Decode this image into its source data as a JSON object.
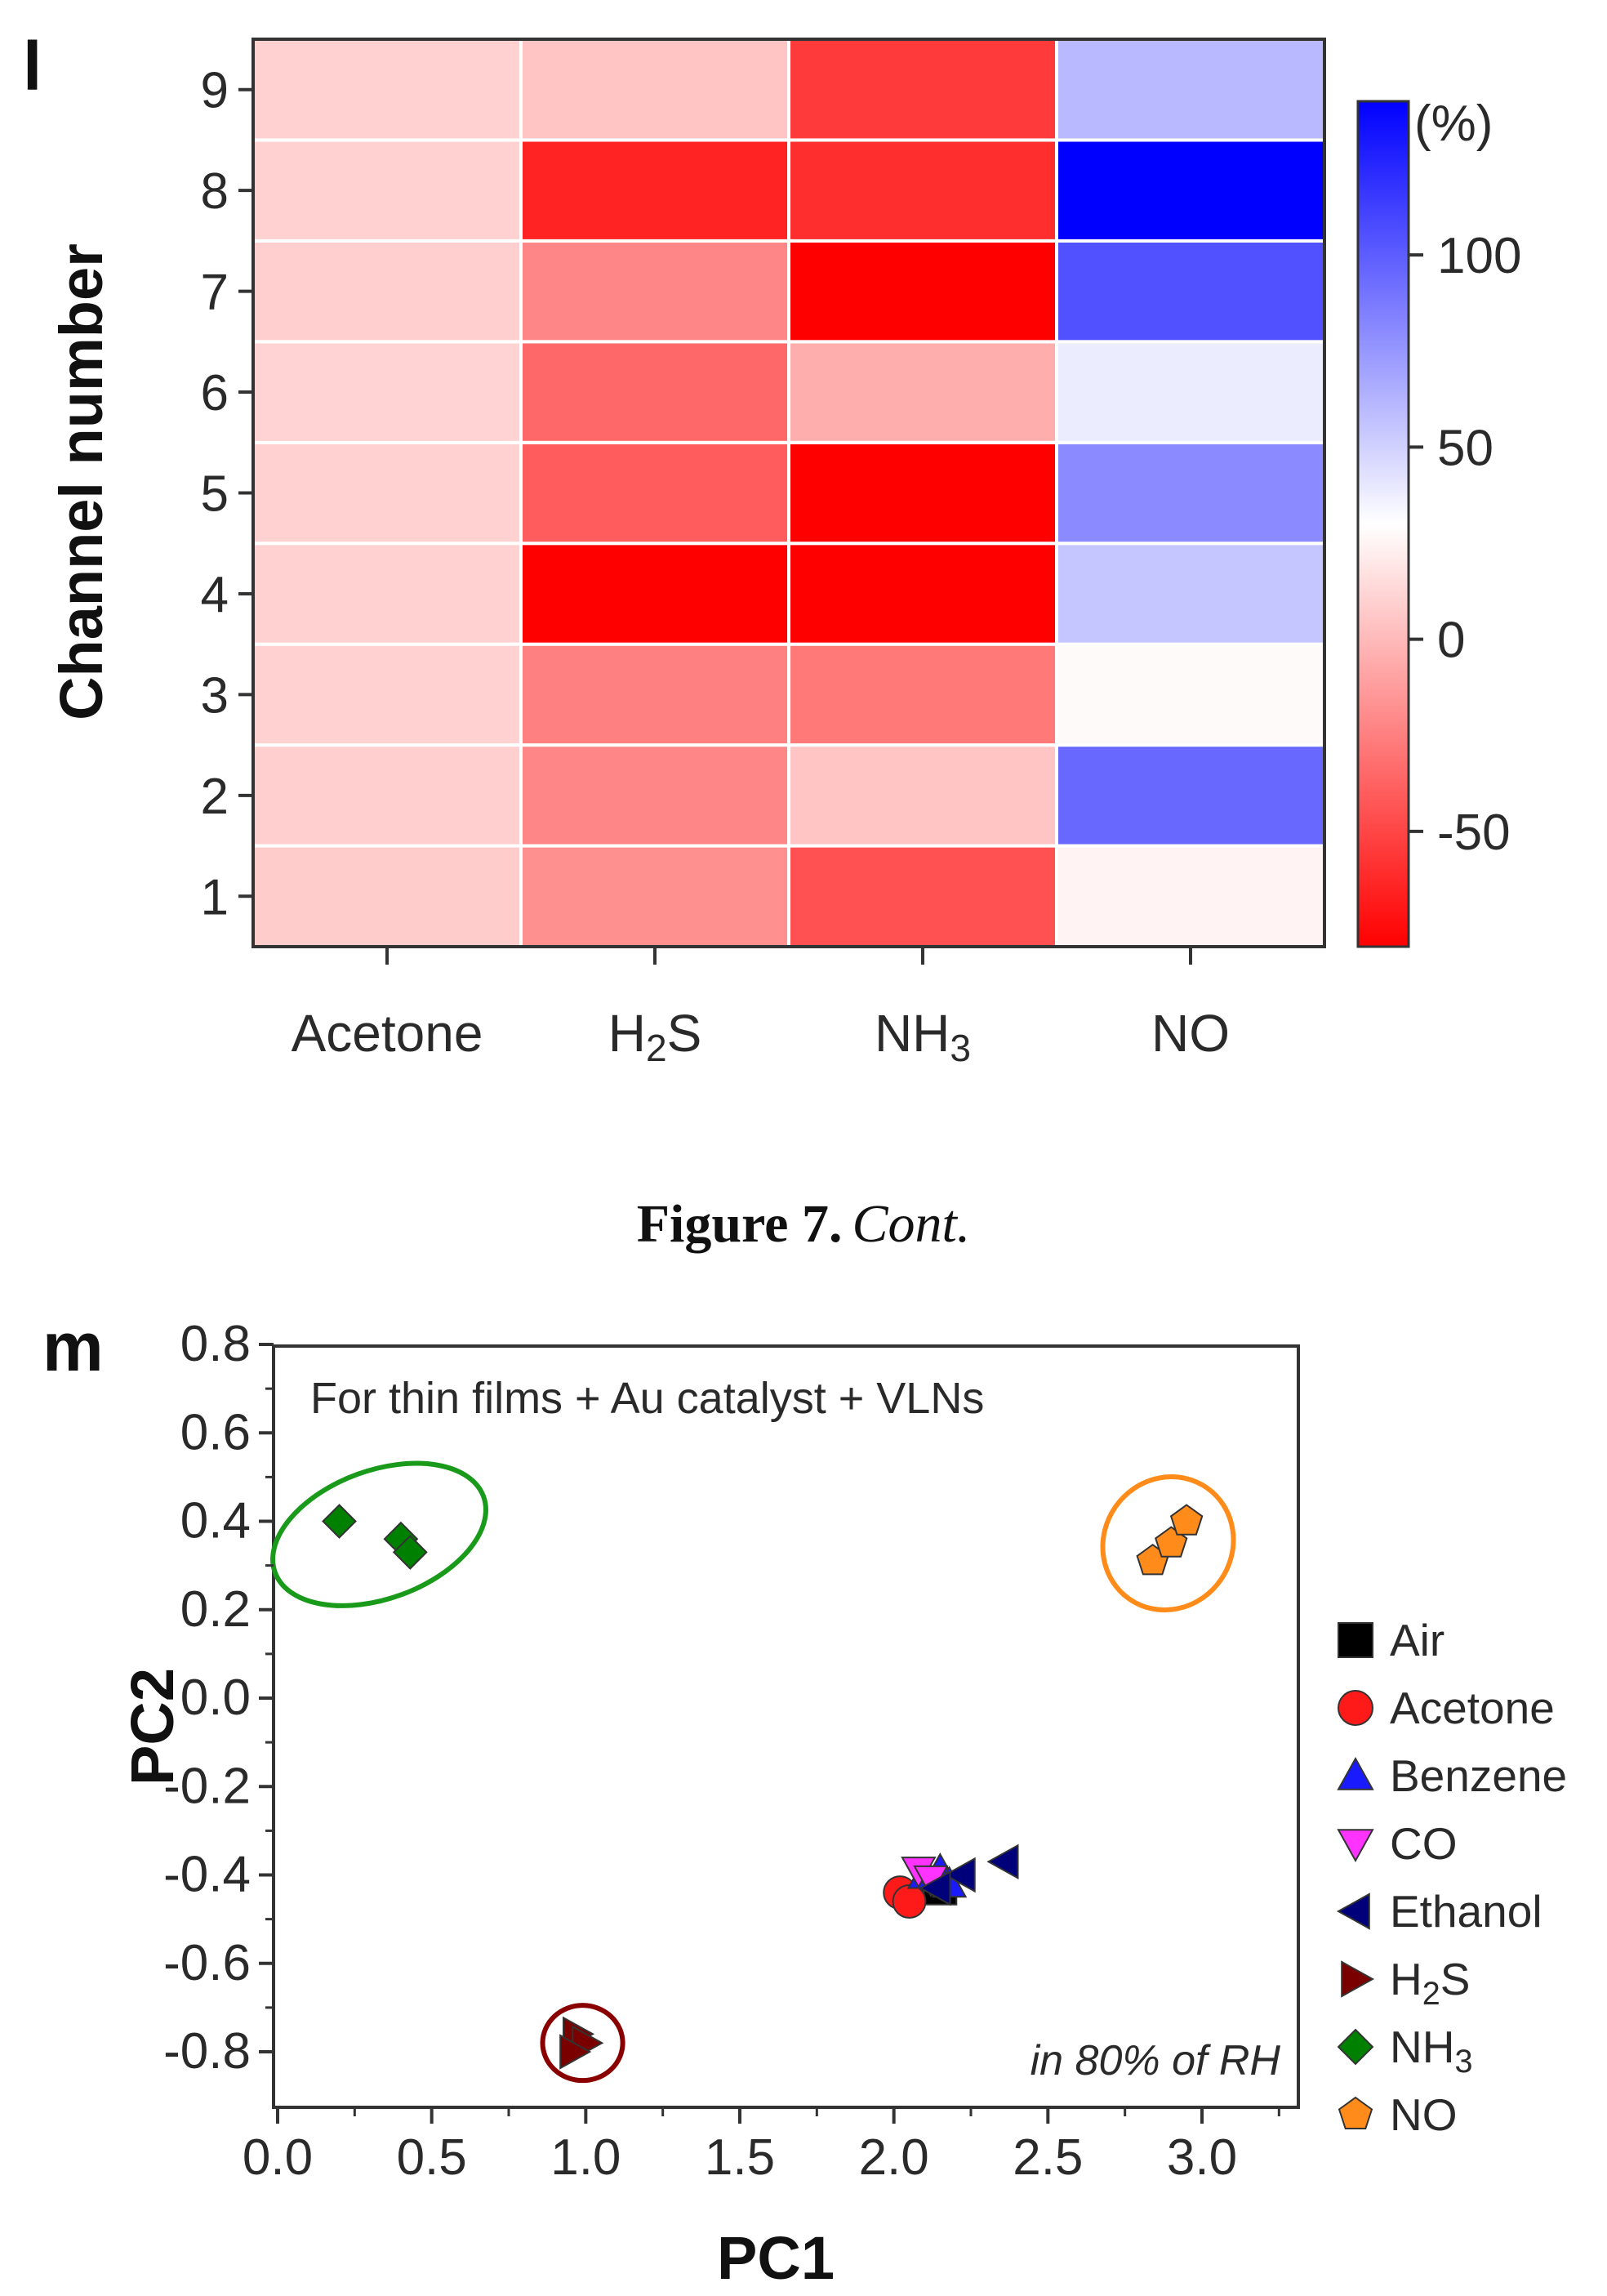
{
  "caption": {
    "label": "Figure 7.",
    "cont": "Cont."
  },
  "chart_data": [
    {
      "panel": "l",
      "type": "heatmap",
      "ylabel": "Channel number",
      "x_categories": [
        "Acetone",
        "H2S",
        "NH3",
        "NO"
      ],
      "x_labels": [
        {
          "base": "Acetone",
          "sub": "",
          "tail": ""
        },
        {
          "base": "H",
          "sub": "2",
          "tail": "S"
        },
        {
          "base": "NH",
          "sub": "3",
          "tail": ""
        },
        {
          "base": "NO",
          "sub": "",
          "tail": ""
        }
      ],
      "y_categories": [
        1,
        2,
        3,
        4,
        5,
        6,
        7,
        8,
        9
      ],
      "values": {
        "Acetone": [
          8,
          9,
          10,
          10,
          10,
          11,
          9,
          10,
          10
        ],
        "H2S": [
          -18,
          -22,
          -25,
          -80,
          -40,
          -35,
          -22,
          -65,
          5
        ],
        "NH3": [
          -45,
          5,
          -28,
          -90,
          -95,
          -5,
          -95,
          -60,
          -55
        ],
        "NO": [
          25,
          95,
          28,
          55,
          80,
          38,
          105,
          140,
          60
        ]
      },
      "colorbar": {
        "unit": "(%)",
        "range": [
          -80,
          140
        ],
        "ticks": [
          -50,
          0,
          50,
          100
        ],
        "colors": {
          "low": "#ff0000",
          "mid": "#ffffff",
          "high": "#0000ff"
        },
        "mid_value": 30
      }
    },
    {
      "panel": "m",
      "type": "scatter",
      "annotation": "For thin films + Au catalyst + VLNs",
      "condition": "in 80% of RH",
      "xlabel": "PC1",
      "ylabel": "PC2",
      "xlim": [
        0.0,
        3.3
      ],
      "ylim": [
        -0.9,
        0.8
      ],
      "xticks": [
        0.0,
        0.5,
        1.0,
        1.5,
        2.0,
        2.5,
        3.0
      ],
      "xtick_labels": [
        "0.0",
        "0.5",
        "1.0",
        "1.5",
        "2.0",
        "2.5",
        "3.0"
      ],
      "yticks": [
        0.8,
        0.6,
        0.4,
        0.2,
        0.0,
        -0.2,
        -0.4,
        -0.6,
        -0.8
      ],
      "ytick_labels": [
        "0.8",
        "0.6",
        "0.4",
        "0.2",
        "0.0",
        "-0.2",
        "-0.4",
        "-0.6",
        "-0.8"
      ],
      "series": [
        {
          "name": "Air",
          "label_base": "Air",
          "label_sub": "",
          "label_tail": "",
          "marker": "square",
          "color": "#000000",
          "points": [
            [
              2.12,
              -0.42
            ],
            [
              2.15,
              -0.43
            ]
          ]
        },
        {
          "name": "Acetone",
          "label_base": "Acetone",
          "label_sub": "",
          "label_tail": "",
          "marker": "circle",
          "color": "#ff1a1a",
          "points": [
            [
              2.02,
              -0.44
            ],
            [
              2.05,
              -0.46
            ]
          ]
        },
        {
          "name": "Benzene",
          "label_base": "Benzene",
          "label_sub": "",
          "label_tail": "",
          "marker": "triangle-up",
          "color": "#1a1aff",
          "points": [
            [
              2.1,
              -0.4
            ],
            [
              2.15,
              -0.39
            ],
            [
              2.18,
              -0.42
            ]
          ]
        },
        {
          "name": "CO",
          "label_base": "CO",
          "label_sub": "",
          "label_tail": "",
          "marker": "triangle-down",
          "color": "#ff33ff",
          "points": [
            [
              2.08,
              -0.39
            ],
            [
              2.12,
              -0.41
            ]
          ]
        },
        {
          "name": "Ethanol",
          "label_base": "Ethanol",
          "label_sub": "",
          "label_tail": "",
          "marker": "triangle-left",
          "color": "#00007a",
          "points": [
            [
              2.36,
              -0.37
            ],
            [
              2.22,
              -0.4
            ],
            [
              2.14,
              -0.43
            ]
          ]
        },
        {
          "name": "H2S",
          "label_base": "H",
          "label_sub": "2",
          "label_tail": "S",
          "marker": "triangle-right",
          "color": "#7a0000",
          "points": [
            [
              0.97,
              -0.76
            ],
            [
              1.0,
              -0.78
            ],
            [
              0.96,
              -0.8
            ]
          ]
        },
        {
          "name": "NH3",
          "label_base": "NH",
          "label_sub": "3",
          "label_tail": "",
          "marker": "diamond",
          "color": "#008000",
          "points": [
            [
              0.2,
              0.4
            ],
            [
              0.4,
              0.36
            ],
            [
              0.43,
              0.33
            ]
          ]
        },
        {
          "name": "NO",
          "label_base": "NO",
          "label_sub": "",
          "label_tail": "",
          "marker": "pentagon",
          "color": "#ff8c1a",
          "points": [
            [
              2.84,
              0.31
            ],
            [
              2.9,
              0.35
            ],
            [
              2.95,
              0.4
            ]
          ]
        }
      ],
      "clusters": [
        {
          "group": "NH3",
          "cx": 0.33,
          "cy": 0.37,
          "rx": 0.36,
          "ry": 0.145,
          "angle": -20,
          "color": "#1a9a1a"
        },
        {
          "group": "NO",
          "cx": 2.89,
          "cy": 0.35,
          "rx": 0.22,
          "ry": 0.145,
          "angle": -55,
          "color": "#ff8c1a"
        },
        {
          "group": "H2S",
          "cx": 0.99,
          "cy": -0.78,
          "rx": 0.13,
          "ry": 0.085,
          "angle": 0,
          "color": "#8a0000"
        }
      ]
    }
  ]
}
